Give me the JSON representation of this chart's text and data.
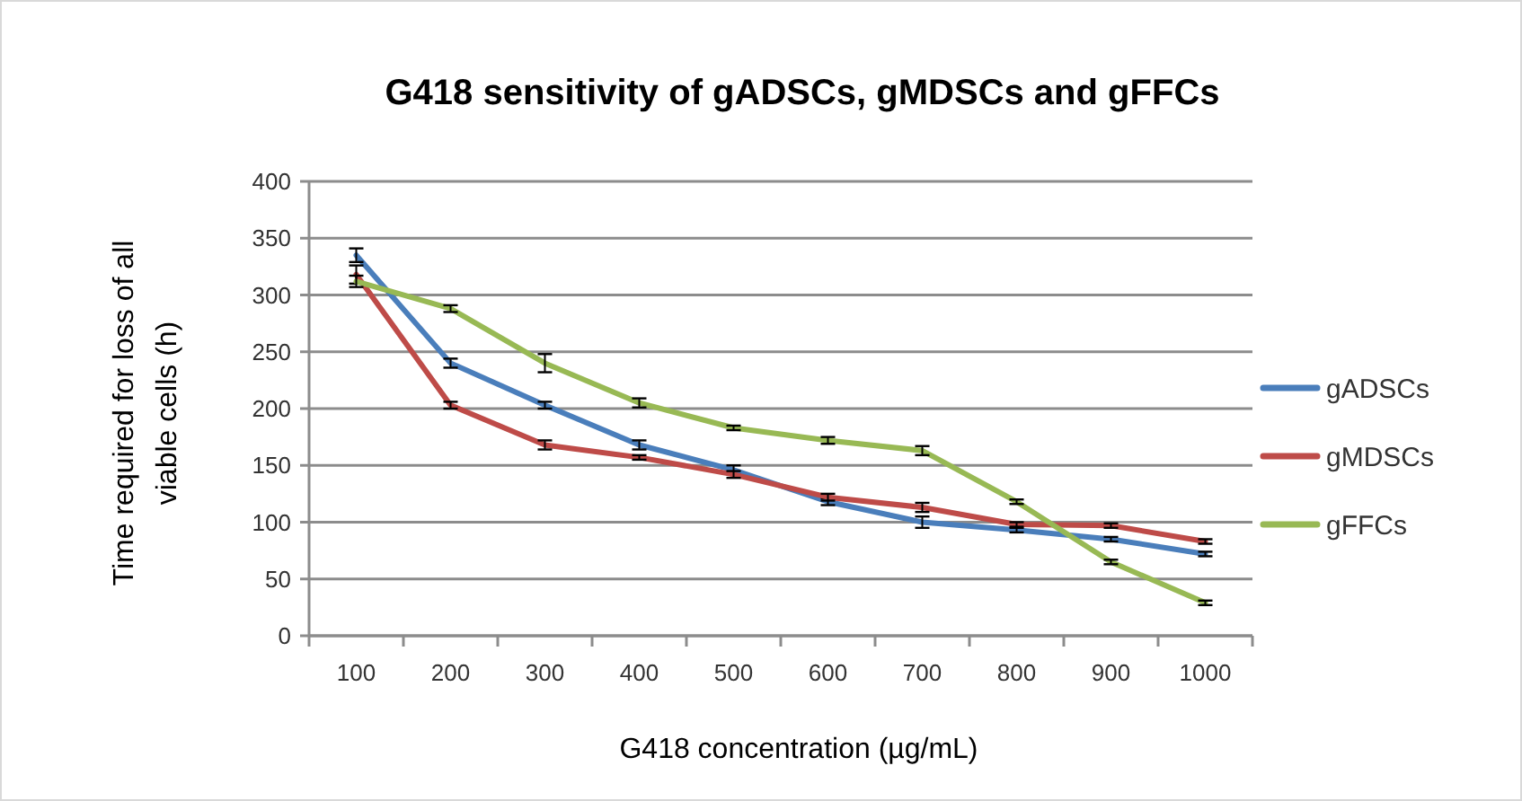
{
  "chart_data": {
    "type": "line",
    "title": "G418 sensitivity of gADSCs, gMDSCs and gFFCs",
    "xlabel": "G418 concentration (µg/mL)",
    "ylabel": "Time required for loss of all viable cells (h)",
    "categories": [
      "100",
      "200",
      "300",
      "400",
      "500",
      "600",
      "700",
      "800",
      "900",
      "1000"
    ],
    "series": [
      {
        "name": "gADSCs",
        "color": "#4a7ebb",
        "values": [
          335,
          240,
          203,
          168,
          146,
          118,
          100,
          93,
          85,
          72
        ],
        "errors": [
          6,
          4,
          3,
          4,
          4,
          3,
          5,
          2,
          2,
          2
        ]
      },
      {
        "name": "gMDSCs",
        "color": "#be4b48",
        "values": [
          318,
          203,
          168,
          157,
          142,
          122,
          113,
          98,
          97,
          83
        ],
        "errors": [
          8,
          3,
          4,
          2,
          3,
          3,
          4,
          2,
          2,
          2
        ]
      },
      {
        "name": "gFFCs",
        "color": "#98b954",
        "values": [
          312,
          288,
          240,
          205,
          183,
          172,
          163,
          118,
          65,
          29
        ],
        "errors": [
          5,
          3,
          8,
          4,
          2,
          3,
          4,
          2,
          2,
          2
        ]
      }
    ],
    "ylim": [
      0,
      400
    ],
    "yticks": [
      0,
      50,
      100,
      150,
      200,
      250,
      300,
      350,
      400
    ],
    "grid": "y",
    "legend": "right",
    "marker": "none",
    "line_style": "solid"
  }
}
